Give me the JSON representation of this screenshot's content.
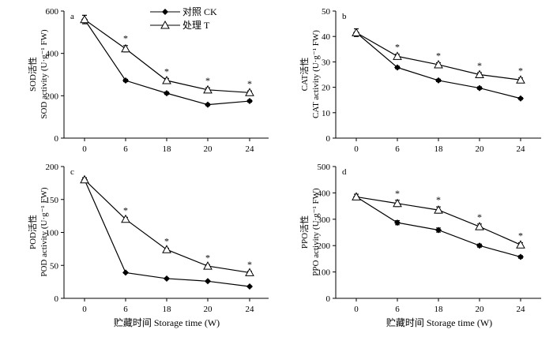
{
  "legend": {
    "ck_label": "对照 CK",
    "t_label": "处理 T"
  },
  "xtitle": "贮藏时间 Storage time (W)",
  "chart_data": [
    {
      "type": "line",
      "panel": "a",
      "ylabel_cn": "SOD活性",
      "ylabel_en": "SOD activity (U·g⁻¹ FW)",
      "categories": [
        "0",
        "6",
        "18",
        "20",
        "24"
      ],
      "ylim": [
        0,
        600
      ],
      "yticks": [
        0,
        200,
        400,
        600
      ],
      "series": [
        {
          "name": "对照 CK",
          "marker": "diamond",
          "values": [
            560,
            272,
            212,
            158,
            175
          ],
          "err": [
            20,
            6,
            6,
            5,
            5
          ]
        },
        {
          "name": "处理 T",
          "marker": "triangle",
          "values": [
            560,
            422,
            272,
            228,
            215
          ],
          "err": [
            20,
            15,
            10,
            10,
            8
          ]
        }
      ],
      "sig": [
        "",
        "*",
        "*",
        "*",
        "*"
      ]
    },
    {
      "type": "line",
      "panel": "b",
      "ylabel_cn": "CAT活性",
      "ylabel_en": "CAT activity (U·g⁻¹ FW)",
      "categories": [
        "0",
        "6",
        "18",
        "20",
        "24"
      ],
      "ylim": [
        0,
        50
      ],
      "yticks": [
        0,
        10,
        20,
        30,
        40,
        50
      ],
      "series": [
        {
          "name": "对照 CK",
          "marker": "diamond",
          "values": [
            41.5,
            27.8,
            22.7,
            19.7,
            15.6
          ],
          "err": [
            1.5,
            0.5,
            0.5,
            0.5,
            0.4
          ]
        },
        {
          "name": "处理 T",
          "marker": "triangle",
          "values": [
            41.5,
            32.2,
            28.9,
            25.0,
            22.9
          ],
          "err": [
            1.5,
            0.8,
            0.8,
            0.8,
            0.8
          ]
        }
      ],
      "sig": [
        "",
        "*",
        "*",
        "*",
        "*"
      ]
    },
    {
      "type": "line",
      "panel": "c",
      "ylabel_cn": "POD活性",
      "ylabel_en": "POD activity (U·g⁻¹ FW)",
      "categories": [
        "0",
        "6",
        "18",
        "20",
        "24"
      ],
      "ylim": [
        0,
        200
      ],
      "yticks": [
        0,
        50,
        100,
        150,
        200
      ],
      "series": [
        {
          "name": "对照 CK",
          "marker": "diamond",
          "values": [
            180,
            39,
            30,
            26,
            18
          ],
          "err": [
            3,
            1,
            1,
            1,
            1
          ]
        },
        {
          "name": "处理 T",
          "marker": "triangle",
          "values": [
            180,
            120,
            74,
            49,
            39
          ],
          "err": [
            3,
            3,
            2,
            2,
            2
          ]
        }
      ],
      "sig": [
        "",
        "*",
        "*",
        "*",
        "*"
      ]
    },
    {
      "type": "line",
      "panel": "d",
      "ylabel_cn": "PPO活性",
      "ylabel_en": "PPO activity (U·g⁻¹ FW)",
      "categories": [
        "0",
        "6",
        "18",
        "20",
        "24"
      ],
      "ylim": [
        0,
        500
      ],
      "yticks": [
        0,
        100,
        200,
        300,
        400,
        500
      ],
      "series": [
        {
          "name": "对照 CK",
          "marker": "diamond",
          "values": [
            385,
            287,
            259,
            200,
            157
          ],
          "err": [
            10,
            8,
            8,
            6,
            5
          ]
        },
        {
          "name": "处理 T",
          "marker": "triangle",
          "values": [
            385,
            360,
            335,
            272,
            203
          ],
          "err": [
            10,
            12,
            12,
            10,
            8
          ]
        }
      ],
      "sig": [
        "",
        "*",
        "*",
        "*",
        "*"
      ]
    }
  ]
}
